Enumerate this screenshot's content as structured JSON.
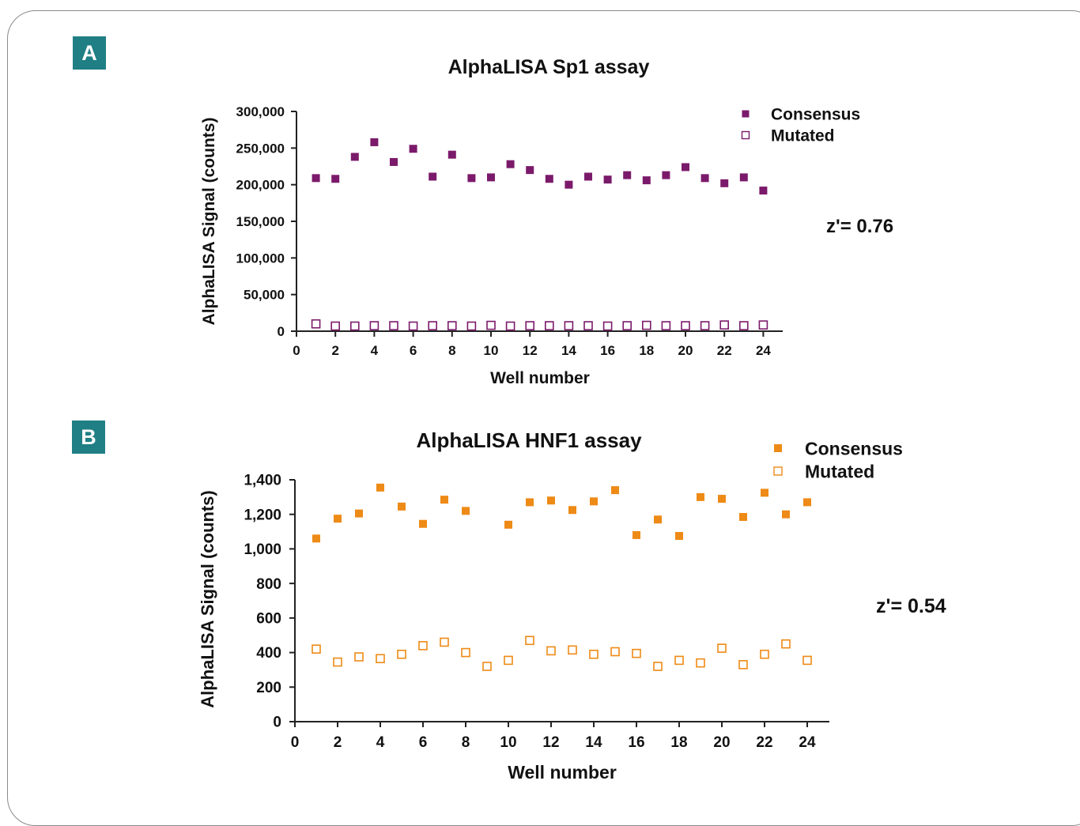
{
  "panel_labels": [
    "A",
    "B"
  ],
  "chart_data": [
    {
      "type": "scatter",
      "title": "AlphaLISA Sp1 assay",
      "xlabel": "Well number",
      "ylabel": "AlphaLISA Signal (counts)",
      "xlim": [
        0,
        25
      ],
      "ylim": [
        0,
        300000
      ],
      "xticks": [
        0,
        2,
        4,
        6,
        8,
        10,
        12,
        14,
        16,
        18,
        20,
        22,
        24
      ],
      "xtick_labels": [
        "0",
        "2",
        "4",
        "6",
        "8",
        "10",
        "12",
        "14",
        "16",
        "18",
        "20",
        "22",
        "24"
      ],
      "yticks": [
        0,
        50000,
        100000,
        150000,
        200000,
        250000,
        300000
      ],
      "ytick_labels": [
        "0",
        "50,000",
        "100,000",
        "150,000",
        "200,000",
        "250,000",
        "300,000"
      ],
      "annotation": "z'= 0.76",
      "legend_position": "top-right",
      "grid": false,
      "x": [
        1,
        2,
        3,
        4,
        5,
        6,
        7,
        8,
        9,
        10,
        11,
        12,
        13,
        14,
        15,
        16,
        17,
        18,
        19,
        20,
        21,
        22,
        23,
        24
      ],
      "series": [
        {
          "name": "Consensus",
          "marker": "filled-square",
          "color": "#7b1a6b",
          "values": [
            209000,
            208000,
            238000,
            258000,
            231000,
            249000,
            211000,
            241000,
            209000,
            210000,
            228000,
            220000,
            208000,
            200000,
            211000,
            207000,
            213000,
            206000,
            213000,
            224000,
            209000,
            202000,
            210000,
            192000
          ]
        },
        {
          "name": "Mutated",
          "marker": "open-square",
          "color": "#7b1a6b",
          "values": [
            10000,
            7000,
            7000,
            7500,
            7500,
            7000,
            7500,
            7500,
            7000,
            8000,
            7000,
            7500,
            7500,
            7500,
            7500,
            7000,
            7500,
            8000,
            7500,
            7500,
            7500,
            8500,
            7500,
            8500
          ]
        }
      ]
    },
    {
      "type": "scatter",
      "title": "AlphaLISA HNF1 assay",
      "xlabel": "Well number",
      "ylabel": "AlphaLISA Signal (counts)",
      "xlim": [
        0,
        25
      ],
      "ylim": [
        0,
        1500
      ],
      "xticks": [
        0,
        2,
        4,
        6,
        8,
        10,
        12,
        14,
        16,
        18,
        20,
        22,
        24
      ],
      "xtick_labels": [
        "0",
        "2",
        "4",
        "6",
        "8",
        "10",
        "12",
        "14",
        "16",
        "18",
        "20",
        "22",
        "24"
      ],
      "yticks": [
        0,
        200,
        400,
        600,
        800,
        1000,
        1200,
        1400
      ],
      "ytick_labels": [
        "0",
        "200",
        "400",
        "600",
        "800",
        "1,000",
        "1,200",
        "1,400"
      ],
      "annotation": "z'= 0.54",
      "legend_position": "top-right",
      "grid": false,
      "x": [
        1,
        2,
        3,
        4,
        5,
        6,
        7,
        8,
        9,
        10,
        11,
        12,
        13,
        14,
        15,
        16,
        17,
        18,
        19,
        20,
        21,
        22,
        23,
        24
      ],
      "series": [
        {
          "name": "Consensus",
          "marker": "filled-square",
          "color": "#ee8a16",
          "values": [
            1060,
            1175,
            1205,
            1355,
            1245,
            1145,
            1285,
            1220,
            null,
            1140,
            1270,
            1280,
            1225,
            1275,
            1340,
            1080,
            1170,
            1075,
            1300,
            1290,
            1185,
            1325,
            1200,
            1270
          ]
        },
        {
          "name": "Mutated",
          "marker": "open-square",
          "color": "#ee8a16",
          "values": [
            420,
            345,
            375,
            365,
            390,
            440,
            460,
            400,
            320,
            355,
            470,
            410,
            415,
            390,
            405,
            395,
            320,
            355,
            340,
            425,
            330,
            390,
            450,
            355
          ]
        }
      ]
    }
  ]
}
